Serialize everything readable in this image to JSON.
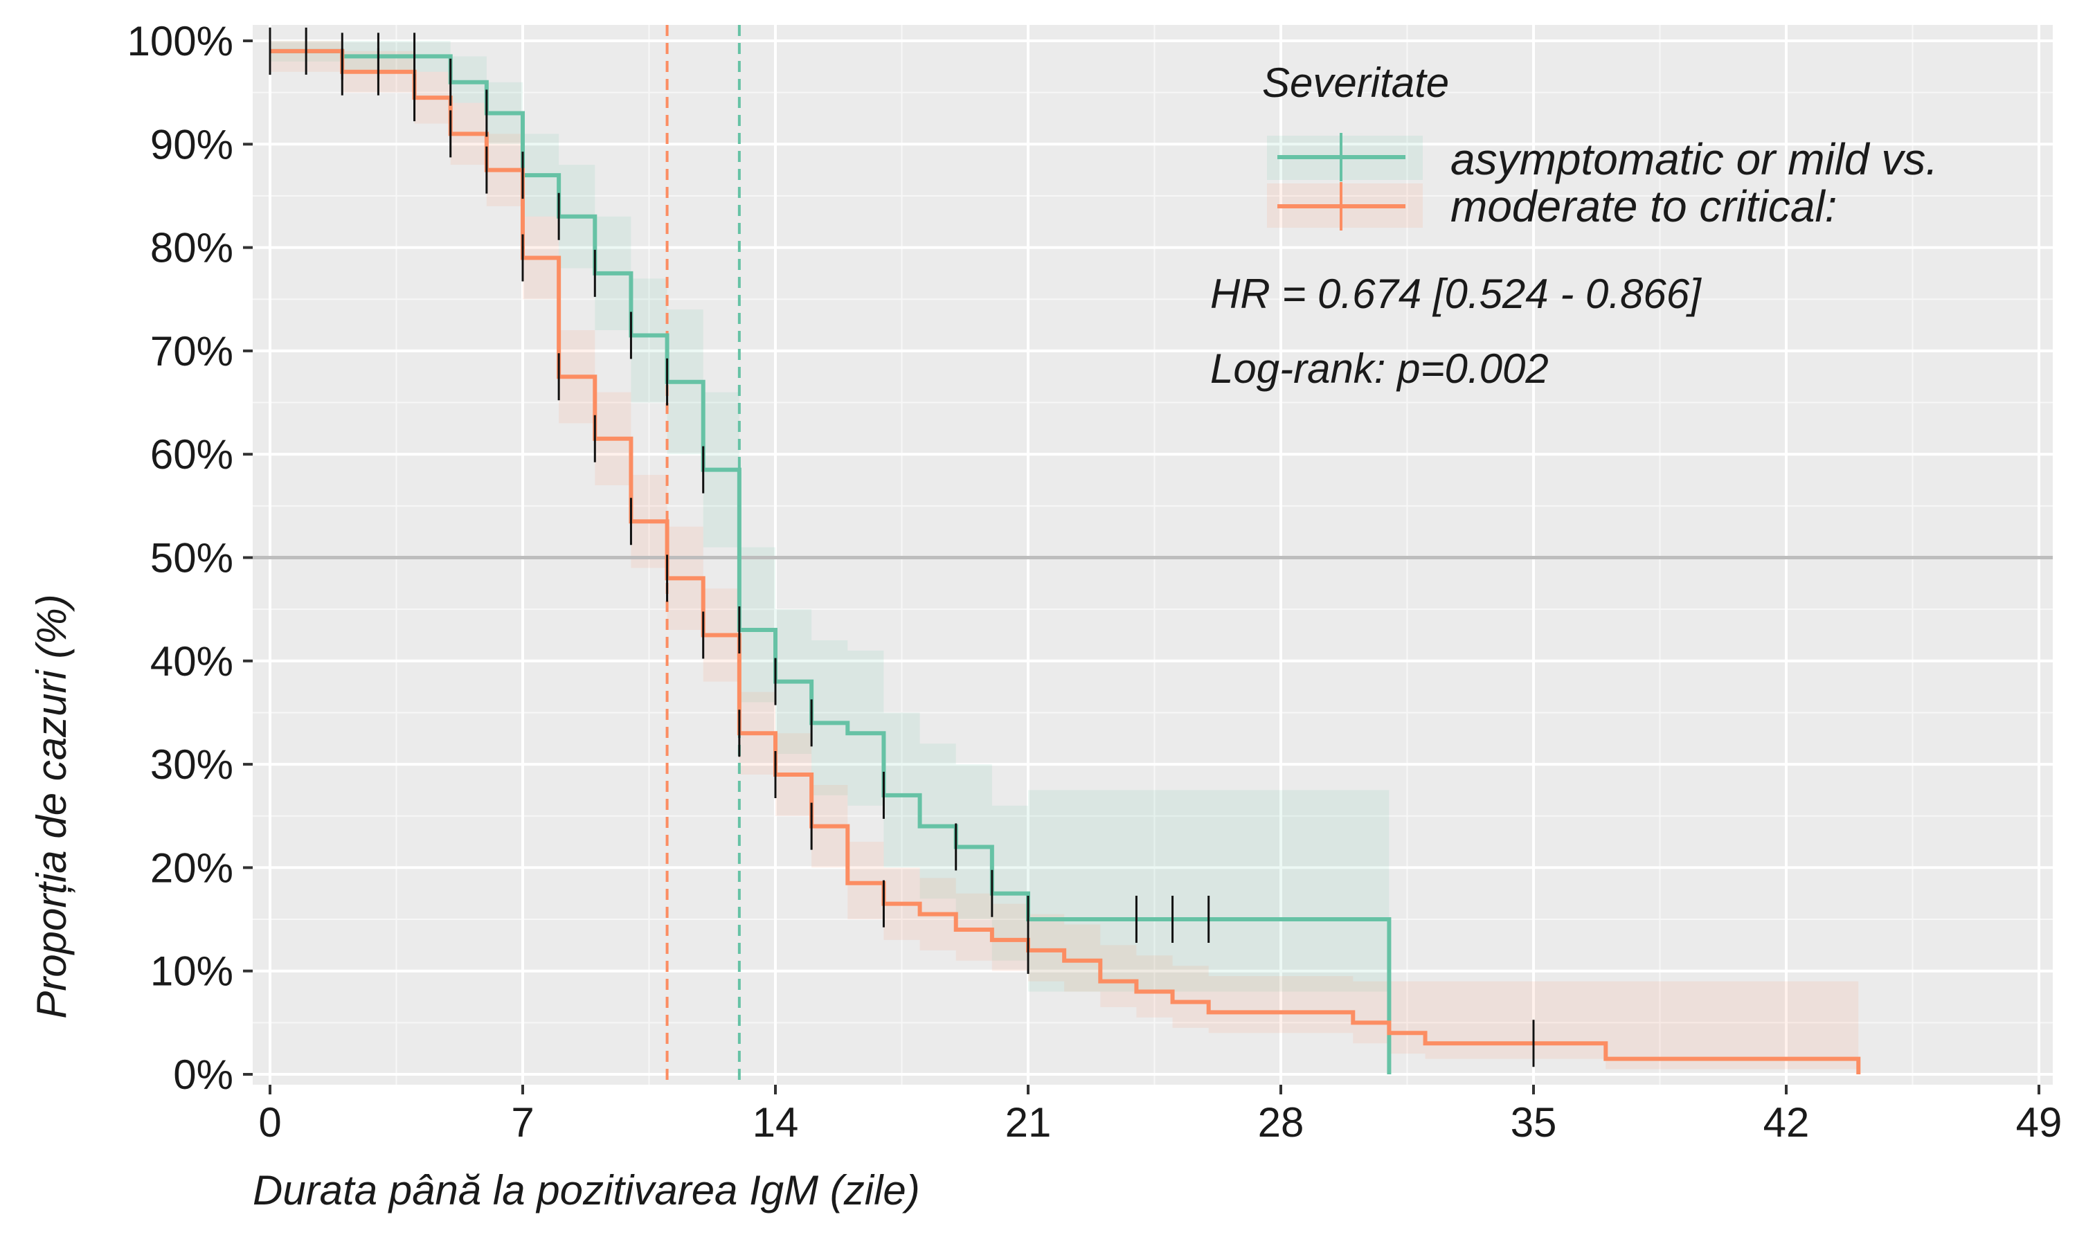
{
  "chart_data": {
    "type": "line",
    "subtype": "kaplan-meier step",
    "xlabel": "Durata până la pozitivarea IgM (zile)",
    "ylabel": "Proporția de cazuri (%)",
    "xlim": [
      -0.5,
      49
    ],
    "ylim": [
      0,
      1
    ],
    "x_ticks": [
      0,
      7,
      14,
      21,
      28,
      35,
      42,
      49
    ],
    "x_tick_labels": [
      "0",
      "7",
      "14",
      "21",
      "28",
      "35",
      "42",
      "49"
    ],
    "y_ticks": [
      0,
      0.1,
      0.2,
      0.3,
      0.4,
      0.5,
      0.6,
      0.7,
      0.8,
      0.9,
      1.0
    ],
    "y_tick_labels": [
      "0%",
      "10%",
      "20%",
      "30%",
      "40%",
      "50%",
      "60%",
      "70%",
      "80%",
      "90%",
      "100%"
    ],
    "grid": true,
    "reference_line_y": 0.5,
    "legend": {
      "title": "Severitate",
      "position": "top-right",
      "entries": [
        "asymptomatic or mild vs.",
        "moderate to critical:"
      ]
    },
    "annotations": [
      "HR = 0.674 [0.524 - 0.866]",
      "Log-rank: p=0.002"
    ],
    "series": [
      {
        "color": "#66c2a5",
        "median_x": 13,
        "x": [
          0,
          2,
          5,
          6,
          7,
          8,
          9,
          10,
          11,
          12,
          13,
          14,
          15,
          16,
          17,
          18,
          19,
          20,
          21,
          31
        ],
        "y": [
          0.99,
          0.985,
          0.96,
          0.93,
          0.87,
          0.83,
          0.775,
          0.715,
          0.67,
          0.585,
          0.43,
          0.38,
          0.34,
          0.33,
          0.27,
          0.24,
          0.22,
          0.175,
          0.15,
          0.0
        ],
        "lower": [
          0.98,
          0.97,
          0.94,
          0.9,
          0.83,
          0.78,
          0.72,
          0.65,
          0.6,
          0.51,
          0.36,
          0.31,
          0.27,
          0.26,
          0.2,
          0.17,
          0.15,
          0.11,
          0.08,
          0.0
        ],
        "upper": [
          1.0,
          1.0,
          0.985,
          0.96,
          0.91,
          0.88,
          0.83,
          0.77,
          0.74,
          0.66,
          0.51,
          0.45,
          0.42,
          0.41,
          0.35,
          0.32,
          0.3,
          0.26,
          0.275,
          0.0
        ],
        "censor_x": [
          0,
          1,
          2,
          3,
          4,
          5,
          6,
          7,
          8,
          9,
          10,
          11,
          12,
          13,
          14,
          15,
          17,
          19,
          20,
          21,
          24,
          25,
          26
        ],
        "censor_y": [
          0.99,
          0.99,
          0.985,
          0.985,
          0.985,
          0.96,
          0.93,
          0.87,
          0.83,
          0.775,
          0.715,
          0.67,
          0.585,
          0.43,
          0.38,
          0.34,
          0.27,
          0.22,
          0.175,
          0.15,
          0.15,
          0.15,
          0.15
        ]
      },
      {
        "color": "#fc8d62",
        "median_x": 11,
        "x": [
          0,
          2,
          4,
          5,
          6,
          7,
          8,
          9,
          10,
          11,
          12,
          13,
          14,
          15,
          16,
          17,
          18,
          19,
          20,
          21,
          22,
          23,
          24,
          25,
          26,
          30,
          31,
          32,
          35,
          37,
          44
        ],
        "y": [
          0.99,
          0.97,
          0.945,
          0.91,
          0.875,
          0.79,
          0.675,
          0.615,
          0.535,
          0.48,
          0.425,
          0.33,
          0.29,
          0.24,
          0.185,
          0.165,
          0.155,
          0.14,
          0.13,
          0.12,
          0.11,
          0.09,
          0.08,
          0.07,
          0.06,
          0.05,
          0.04,
          0.03,
          0.03,
          0.015,
          0.0
        ],
        "lower": [
          0.97,
          0.95,
          0.92,
          0.88,
          0.84,
          0.75,
          0.63,
          0.57,
          0.49,
          0.43,
          0.38,
          0.29,
          0.25,
          0.2,
          0.15,
          0.13,
          0.12,
          0.11,
          0.1,
          0.09,
          0.08,
          0.065,
          0.055,
          0.045,
          0.04,
          0.03,
          0.02,
          0.015,
          0.015,
          0.005,
          0.0
        ],
        "upper": [
          1.0,
          0.99,
          0.97,
          0.94,
          0.91,
          0.83,
          0.72,
          0.66,
          0.58,
          0.53,
          0.47,
          0.37,
          0.33,
          0.28,
          0.225,
          0.2,
          0.19,
          0.175,
          0.165,
          0.155,
          0.145,
          0.125,
          0.115,
          0.105,
          0.095,
          0.09,
          0.09,
          0.09,
          0.09,
          0.09,
          0.0
        ],
        "censor_x": [
          0,
          2,
          3,
          4,
          5,
          6,
          7,
          8,
          9,
          10,
          11,
          12,
          13,
          14,
          15,
          17,
          21,
          35
        ],
        "censor_y": [
          0.99,
          0.97,
          0.97,
          0.945,
          0.91,
          0.875,
          0.79,
          0.675,
          0.615,
          0.535,
          0.48,
          0.425,
          0.33,
          0.29,
          0.24,
          0.165,
          0.12,
          0.03
        ]
      }
    ]
  }
}
